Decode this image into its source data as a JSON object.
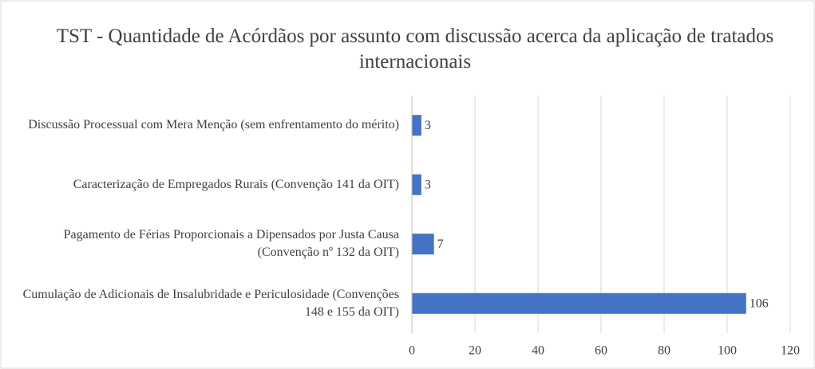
{
  "chart_data": {
    "type": "barh",
    "title": "TST - Quantidade de Acórdãos por assunto com discussão acerca da aplicação de tratados internacionais",
    "categories": [
      "Discussão Processual com Mera Menção (sem enfrentamento do mérito)",
      "Caracterização de Empregados Rurais (Convenção 141 da OIT)",
      "Pagamento de Férias Proporcionais a Dipensados por Justa Causa (Convenção nº 132 da OIT)",
      "Cumulação de Adicionais de Insalubridade e Periculosidade (Convenções 148 e 155 da OIT)"
    ],
    "values": [
      3,
      3,
      7,
      106
    ],
    "color": "#4472c4",
    "xlim": [
      0,
      120
    ],
    "xticks": [
      0,
      20,
      40,
      60,
      80,
      100,
      120
    ],
    "grid": true
  }
}
